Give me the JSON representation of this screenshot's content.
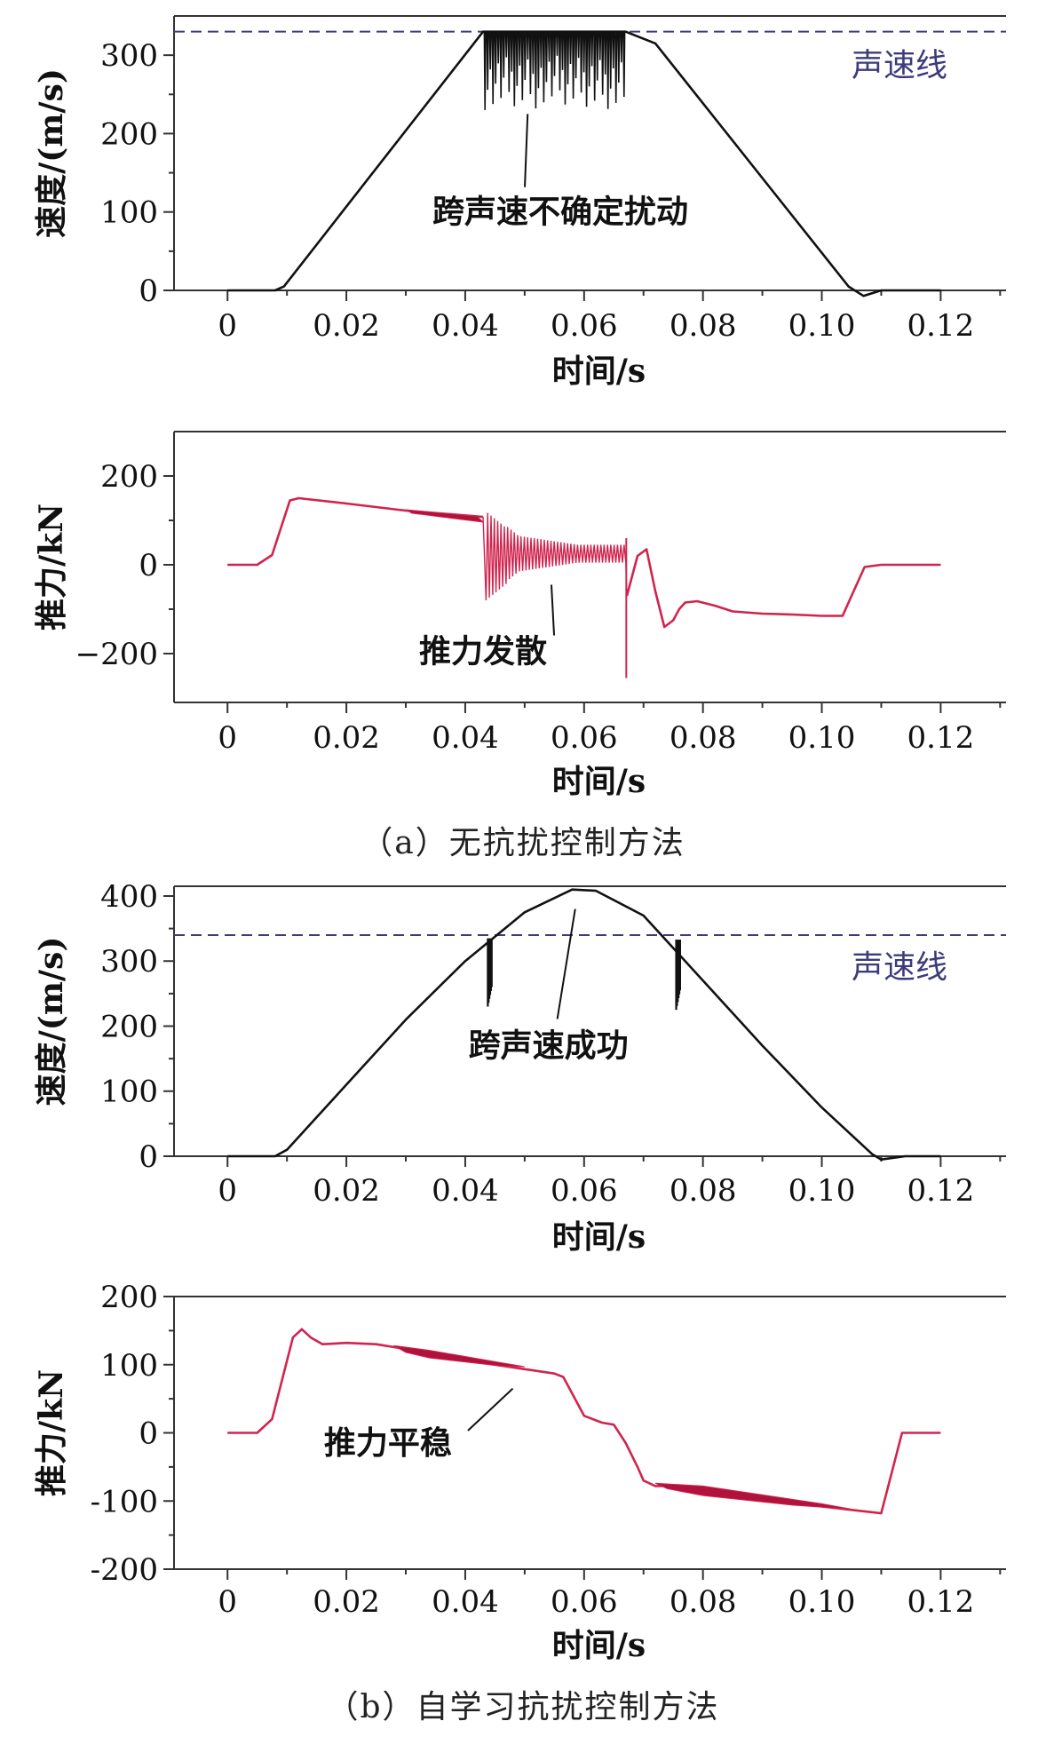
{
  "captions": {
    "a": "（a）无抗扰控制方法",
    "b": "（b）自学习抗扰控制方法"
  },
  "colors": {
    "speed_line": "#111111",
    "thrust_line": "#d0244e",
    "thrust_fill": "#b0123c",
    "sound_line": "#3c3c7a",
    "axis": "#333333"
  },
  "chart_data": [
    {
      "id": "a-speed",
      "type": "line",
      "xlabel": "时间/s",
      "ylabel": "速度/(m/s)",
      "xlim": [
        -0.009,
        0.131
      ],
      "ylim": [
        0,
        350
      ],
      "xticks": [
        0,
        0.02,
        0.04,
        0.06,
        0.08,
        0.1,
        0.12
      ],
      "xtick_labels": [
        "0",
        "0.02",
        "0.04",
        "0.06",
        "0.08",
        "0.10",
        "0.12"
      ],
      "yticks": [
        0,
        100,
        200,
        300
      ],
      "ytick_labels": [
        "0",
        "100",
        "200",
        "300"
      ],
      "reference_line": {
        "y": 330,
        "label": "声速线",
        "style": "dashed"
      },
      "annotation": {
        "text": "跨声速不确定扰动",
        "x": 0.056,
        "y": 100,
        "arrow_to": [
          0.0505,
          225
        ]
      },
      "series": [
        {
          "x": [
            0,
            0.008,
            0.0095,
            0.043,
            0.067,
            0.072,
            0.1045,
            0.107,
            0.11,
            0.12
          ],
          "y": [
            0,
            0,
            5,
            330,
            330,
            315,
            5,
            -7,
            0,
            0
          ]
        }
      ],
      "disturbance": {
        "x_start": 0.0432,
        "x_end": 0.067,
        "high": 330,
        "low_min": 230,
        "low_max": 300
      }
    },
    {
      "id": "a-thrust",
      "type": "line",
      "xlabel": "时间/s",
      "ylabel": "推力/kN",
      "xlim": [
        -0.009,
        0.131
      ],
      "ylim": [
        -310,
        300
      ],
      "xticks": [
        0,
        0.02,
        0.04,
        0.06,
        0.08,
        0.1,
        0.12
      ],
      "xtick_labels": [
        "0",
        "0.02",
        "0.04",
        "0.06",
        "0.08",
        "0.10",
        "0.12"
      ],
      "yticks": [
        -200,
        0,
        200
      ],
      "ytick_labels": [
        "−200",
        "0",
        "200"
      ],
      "annotation": {
        "text": "推力发散",
        "x": 0.043,
        "y": -195,
        "arrow_to": [
          0.0545,
          -45
        ]
      },
      "series": [
        {
          "x": [
            0,
            0.005,
            0.0075,
            0.0105,
            0.012,
            0.02,
            0.03,
            0.043
          ],
          "y": [
            0,
            0,
            22,
            145,
            150,
            138,
            122,
            108
          ]
        },
        {
          "x": [
            0.0672,
            0.069,
            0.0705,
            0.072,
            0.0735,
            0.075,
            0.076,
            0.077,
            0.079,
            0.082,
            0.085,
            0.09,
            0.095,
            0.1,
            0.1035,
            0.105,
            0.1072,
            0.11,
            0.112,
            0.12
          ],
          "y": [
            -70,
            20,
            35,
            -60,
            -140,
            -125,
            -100,
            -85,
            -82,
            -92,
            -105,
            -110,
            -112,
            -115,
            -115,
            -70,
            -5,
            0,
            0,
            0
          ]
        }
      ]
    },
    {
      "id": "b-speed",
      "type": "line",
      "xlabel": "时间/s",
      "ylabel": "速度/(m/s)",
      "xlim": [
        -0.009,
        0.131
      ],
      "ylim": [
        0,
        415
      ],
      "xticks": [
        0,
        0.02,
        0.04,
        0.06,
        0.08,
        0.1,
        0.12
      ],
      "xtick_labels": [
        "0",
        "0.02",
        "0.04",
        "0.06",
        "0.08",
        "0.10",
        "0.12"
      ],
      "yticks": [
        0,
        100,
        200,
        300,
        400
      ],
      "ytick_labels": [
        "0",
        "100",
        "200",
        "300",
        "400"
      ],
      "reference_line": {
        "y": 340,
        "label": "声速线",
        "style": "dashed"
      },
      "annotation": {
        "text": "跨声速成功",
        "x": 0.054,
        "y": 170,
        "arrow_to": [
          0.0585,
          380
        ]
      },
      "series": [
        {
          "x": [
            0,
            0.008,
            0.01,
            0.02,
            0.03,
            0.04,
            0.05,
            0.058,
            0.062,
            0.07,
            0.08,
            0.09,
            0.1,
            0.1085,
            0.11,
            0.114,
            0.12
          ],
          "y": [
            0,
            0,
            10,
            110,
            210,
            300,
            375,
            410,
            408,
            370,
            270,
            170,
            75,
            3,
            -5,
            0,
            0
          ]
        }
      ],
      "spikes": [
        {
          "x": 0.0438,
          "top": 335,
          "bottom": 230
        },
        {
          "x": 0.0755,
          "top": 333,
          "bottom": 225
        }
      ]
    },
    {
      "id": "b-thrust",
      "type": "line",
      "xlabel": "时间/s",
      "ylabel": "推力/kN",
      "xlim": [
        -0.009,
        0.131
      ],
      "ylim": [
        -200,
        200
      ],
      "xticks": [
        0,
        0.02,
        0.04,
        0.06,
        0.08,
        0.1,
        0.12
      ],
      "xtick_labels": [
        "0",
        "0.02",
        "0.04",
        "0.06",
        "0.08",
        "0.10",
        "0.12"
      ],
      "yticks": [
        -200,
        -100,
        0,
        100,
        200
      ],
      "ytick_labels": [
        "-200",
        "-100",
        "0",
        "100",
        "200"
      ],
      "annotation": {
        "text": "推力平稳",
        "x": 0.027,
        "y": -15,
        "arrow_to": [
          0.048,
          65
        ]
      },
      "series": [
        {
          "x": [
            0,
            0.005,
            0.0075,
            0.011,
            0.0125,
            0.014,
            0.016,
            0.02,
            0.025,
            0.03,
            0.035,
            0.045,
            0.055,
            0.0565,
            0.06,
            0.063,
            0.065,
            0.067,
            0.069,
            0.07,
            0.072,
            0.075,
            0.08,
            0.09,
            0.1,
            0.11,
            0.1135,
            0.12
          ],
          "y": [
            0,
            0,
            20,
            140,
            152,
            140,
            130,
            132,
            130,
            123,
            115,
            100,
            87,
            82,
            25,
            15,
            12,
            -15,
            -50,
            -70,
            -78,
            -78,
            -85,
            -95,
            -108,
            -118,
            0,
            0
          ]
        }
      ]
    }
  ]
}
